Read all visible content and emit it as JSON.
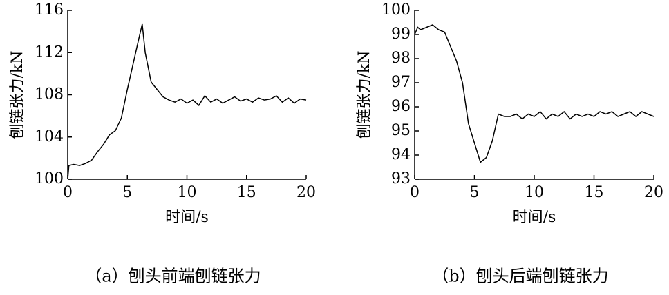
{
  "chart_data": [
    {
      "type": "line",
      "ylabel": "刨链张力/kN",
      "xlabel": "时间/s",
      "caption": "（a）刨头前端刨链张力",
      "color": "#000000",
      "x": [
        0,
        0.1,
        0.5,
        1,
        1.5,
        2,
        2.5,
        3,
        3.5,
        4,
        4.5,
        5,
        5.5,
        6,
        6.25,
        6.5,
        7,
        7.5,
        8,
        8.5,
        9,
        9.5,
        10,
        10.5,
        11,
        11.5,
        12,
        12.5,
        13,
        13.5,
        14,
        14.5,
        15,
        15.5,
        16,
        16.5,
        17,
        17.5,
        18,
        18.5,
        19,
        19.5,
        20
      ],
      "values": [
        100.0,
        101.3,
        101.4,
        101.3,
        101.5,
        101.8,
        102.6,
        103.3,
        104.2,
        104.6,
        105.8,
        108.5,
        111.0,
        113.5,
        114.7,
        112.0,
        109.2,
        108.5,
        107.8,
        107.5,
        107.3,
        107.6,
        107.2,
        107.5,
        107.0,
        107.9,
        107.3,
        107.6,
        107.2,
        107.5,
        107.8,
        107.4,
        107.6,
        107.3,
        107.7,
        107.5,
        107.6,
        107.9,
        107.3,
        107.7,
        107.2,
        107.6,
        107.5
      ],
      "xlim": [
        0,
        20
      ],
      "ylim": [
        100,
        116
      ],
      "xticks": [
        0,
        5,
        10,
        15,
        20
      ],
      "yticks": [
        100,
        104,
        108,
        112,
        116
      ]
    },
    {
      "type": "line",
      "ylabel": "刨链张力/kN",
      "xlabel": "时间/s",
      "caption": "（b）刨头后端刨链张力",
      "color": "#000000",
      "x": [
        0,
        0.25,
        0.5,
        1,
        1.5,
        2,
        2.5,
        3,
        3.5,
        4,
        4.5,
        5,
        5.5,
        6,
        6.5,
        7,
        7.5,
        8,
        8.5,
        9,
        9.5,
        10,
        10.5,
        11,
        11.5,
        12,
        12.5,
        13,
        13.5,
        14,
        14.5,
        15,
        15.5,
        16,
        16.5,
        17,
        17.5,
        18,
        18.5,
        19,
        19.5,
        20
      ],
      "values": [
        99.0,
        99.3,
        99.2,
        99.3,
        99.4,
        99.2,
        99.1,
        98.5,
        97.9,
        97.0,
        95.3,
        94.5,
        93.7,
        93.9,
        94.6,
        95.7,
        95.6,
        95.6,
        95.7,
        95.5,
        95.7,
        95.6,
        95.8,
        95.5,
        95.7,
        95.6,
        95.8,
        95.5,
        95.7,
        95.6,
        95.7,
        95.6,
        95.8,
        95.7,
        95.8,
        95.6,
        95.7,
        95.8,
        95.6,
        95.8,
        95.7,
        95.6
      ],
      "xlim": [
        0,
        20
      ],
      "ylim": [
        93,
        100
      ],
      "xticks": [
        0,
        5,
        10,
        15,
        20
      ],
      "yticks": [
        93,
        94,
        95,
        96,
        97,
        98,
        99,
        100
      ]
    }
  ]
}
